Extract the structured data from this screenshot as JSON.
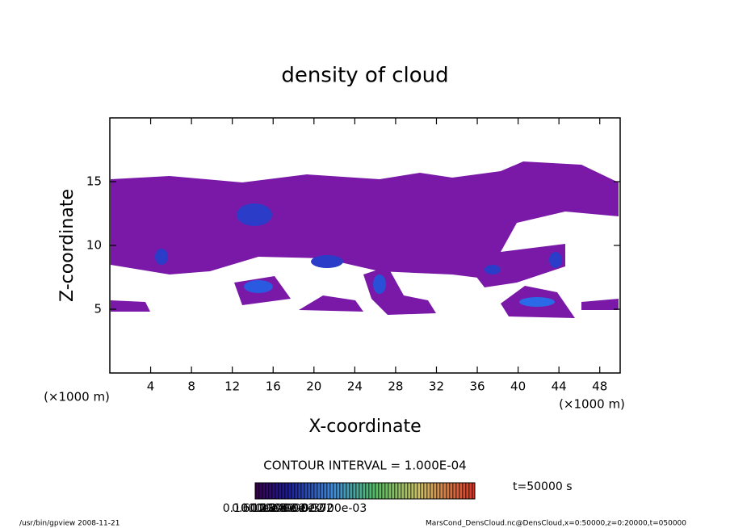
{
  "chart_data": {
    "type": "contour",
    "title": "density of cloud",
    "x_label": "X-coordinate",
    "y_label": "Z-coordinate",
    "x_unit": "(×1000 m)",
    "y_unit": "(×1000 m)",
    "xlim": [
      0,
      50
    ],
    "ylim": [
      0,
      20
    ],
    "xticks": [
      4,
      8,
      12,
      16,
      20,
      24,
      28,
      32,
      36,
      40,
      44,
      48
    ],
    "yticks": [
      5,
      10,
      15
    ],
    "contour_interval": "CONTOUR INTERVAL = 1.000E-04",
    "time_label": "t=50000 s",
    "colorbar_labels": [
      "0.1000e-03",
      "0.6000e-03",
      "0.1200e-02",
      "0.1800e-02",
      "0.2400e-02",
      "0.3000e-02",
      "0.3700e-03"
    ],
    "footer_left": "/usr/bin/gpview   2008-11-21",
    "footer_right": "MarsCond_DensCloud.nc@DensCloud,x=0:50000,z=0:20000,t=050000"
  }
}
